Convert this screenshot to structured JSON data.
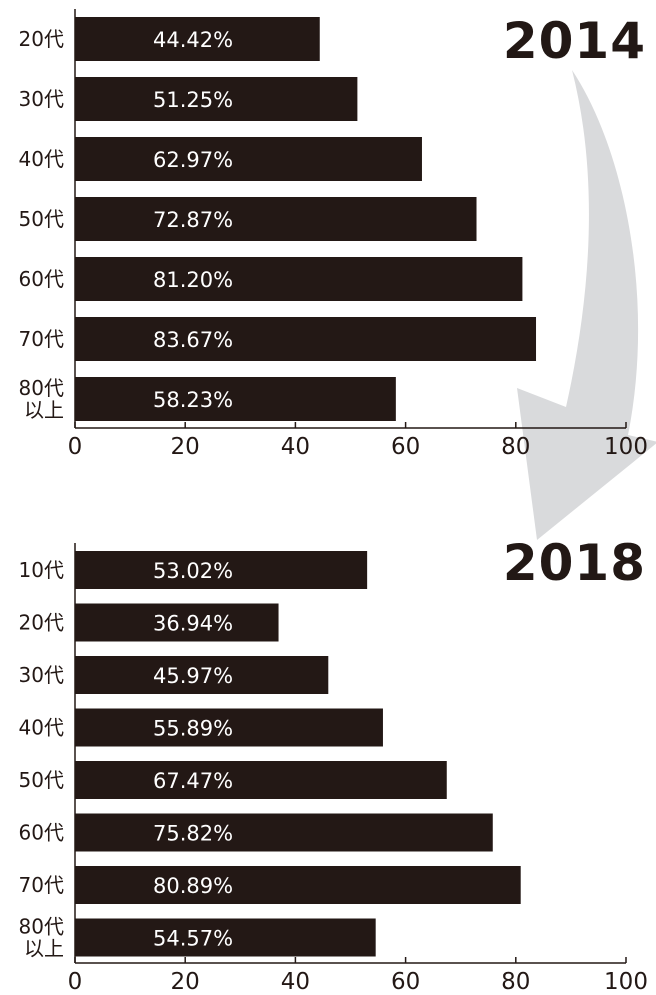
{
  "chart_data": [
    {
      "type": "bar",
      "orientation": "horizontal",
      "title": "2014",
      "categories": [
        "20代",
        "30代",
        "40代",
        "50代",
        "60代",
        "70代",
        "80代\n以上"
      ],
      "values": [
        44.42,
        51.25,
        62.97,
        72.87,
        81.2,
        83.67,
        58.23
      ],
      "value_labels": [
        "44.42%",
        "51.25%",
        "62.97%",
        "72.87%",
        "81.20%",
        "83.67%",
        "58.23%"
      ],
      "xlim": [
        0,
        100
      ],
      "xticks": [
        "0",
        "20",
        "40",
        "60",
        "80",
        "100"
      ],
      "grid": false,
      "bar_color": "#231815",
      "label_color": "#ffffff"
    },
    {
      "type": "bar",
      "orientation": "horizontal",
      "title": "2018",
      "categories": [
        "10代",
        "20代",
        "30代",
        "40代",
        "50代",
        "60代",
        "70代",
        "80代\n以上"
      ],
      "values": [
        53.02,
        36.94,
        45.97,
        55.89,
        67.47,
        75.82,
        80.89,
        54.57
      ],
      "value_labels": [
        "53.02%",
        "36.94%",
        "45.97%",
        "55.89%",
        "67.47%",
        "75.82%",
        "80.89%",
        "54.57%"
      ],
      "xlim": [
        0,
        100
      ],
      "xticks": [
        "0",
        "20",
        "40",
        "60",
        "80",
        "100"
      ],
      "grid": false,
      "bar_color": "#231815",
      "label_color": "#ffffff"
    }
  ],
  "decor": {
    "arrow_color": "#d9dadc",
    "arrow_icon": "curved-down-arrow-icon"
  }
}
